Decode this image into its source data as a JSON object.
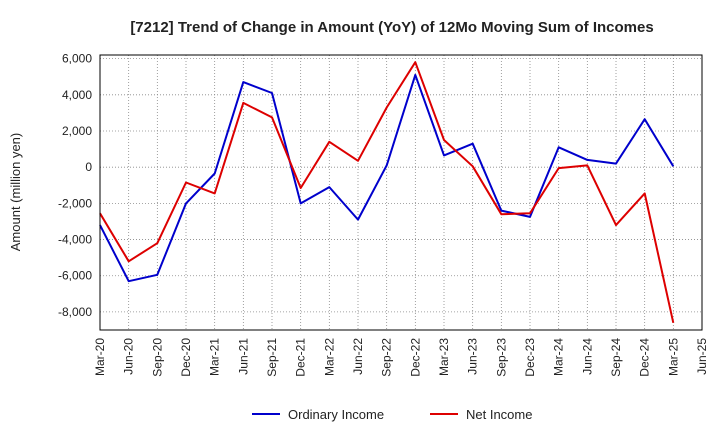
{
  "chart_data": {
    "type": "line",
    "title": "[7212]  Trend of Change in Amount (YoY) of 12Mo Moving Sum of Incomes",
    "ylabel": "Amount (million yen)",
    "xlabel": "",
    "ylim": [
      -9000,
      6200
    ],
    "yticks": [
      -8000,
      -6000,
      -4000,
      -2000,
      0,
      2000,
      4000,
      6000
    ],
    "ytick_labels": [
      "-8,000",
      "-6,000",
      "-4,000",
      "-2,000",
      "0",
      "2,000",
      "4,000",
      "6,000"
    ],
    "x_labels": [
      "Mar-20",
      "Jun-20",
      "Sep-20",
      "Dec-20",
      "Mar-21",
      "Jun-21",
      "Sep-21",
      "Dec-21",
      "Mar-22",
      "Jun-22",
      "Sep-22",
      "Dec-22",
      "Mar-23",
      "Jun-23",
      "Sep-23",
      "Dec-23",
      "Mar-24",
      "Jun-24",
      "Sep-24",
      "Dec-24",
      "Mar-25",
      "Jun-25"
    ],
    "grid": true,
    "legend_position": "bottom-center",
    "series": [
      {
        "name": "Ordinary Income",
        "color": "#0000cc",
        "values": [
          -3200,
          -6300,
          -5950,
          -2000,
          -350,
          4700,
          4100,
          -2000,
          -1100,
          -2900,
          100,
          5100,
          650,
          1300,
          -2400,
          -2750,
          1100,
          400,
          200,
          2650,
          50,
          null
        ]
      },
      {
        "name": "Net Income",
        "color": "#dd0000",
        "values": [
          -2550,
          -5200,
          -4200,
          -850,
          -1450,
          3550,
          2750,
          -1150,
          1400,
          350,
          3300,
          5800,
          1500,
          50,
          -2600,
          -2550,
          -50,
          100,
          -3200,
          -1450,
          -8600,
          null
        ]
      }
    ]
  }
}
